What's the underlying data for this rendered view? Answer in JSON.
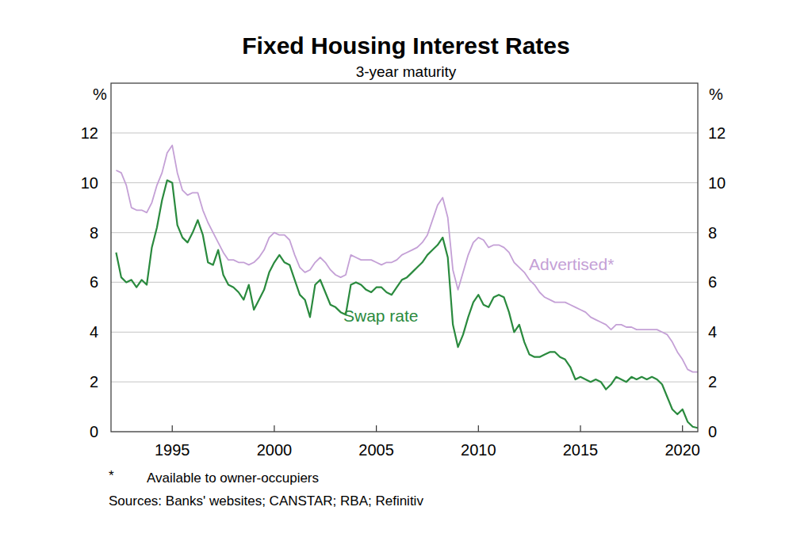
{
  "chart_data": {
    "type": "line",
    "title": "Fixed Housing Interest Rates",
    "subtitle": "3-year maturity",
    "y_label": "%",
    "footnote_marker": "*",
    "footnote": "Available to owner-occupiers",
    "source": "Sources: Banks' websites; CANSTAR; RBA; Refinitiv",
    "x": [
      1992.25,
      1992.5,
      1992.75,
      1993,
      1993.25,
      1993.5,
      1993.75,
      1994,
      1994.25,
      1994.5,
      1994.75,
      1995,
      1995.25,
      1995.5,
      1995.75,
      1996,
      1996.25,
      1996.5,
      1996.75,
      1997,
      1997.25,
      1997.5,
      1997.75,
      1998,
      1998.25,
      1998.5,
      1998.75,
      1999,
      1999.25,
      1999.5,
      1999.75,
      2000,
      2000.25,
      2000.5,
      2000.75,
      2001,
      2001.25,
      2001.5,
      2001.75,
      2002,
      2002.25,
      2002.5,
      2002.75,
      2003,
      2003.25,
      2003.5,
      2003.75,
      2004,
      2004.25,
      2004.5,
      2004.75,
      2005,
      2005.25,
      2005.5,
      2005.75,
      2006,
      2006.25,
      2006.5,
      2006.75,
      2007,
      2007.25,
      2007.5,
      2007.75,
      2008,
      2008.25,
      2008.5,
      2008.75,
      2009,
      2009.25,
      2009.5,
      2009.75,
      2010,
      2010.25,
      2010.5,
      2010.75,
      2011,
      2011.25,
      2011.5,
      2011.75,
      2012,
      2012.25,
      2012.5,
      2012.75,
      2013,
      2013.25,
      2013.5,
      2013.75,
      2014,
      2014.25,
      2014.5,
      2014.75,
      2015,
      2015.25,
      2015.5,
      2015.75,
      2016,
      2016.25,
      2016.5,
      2016.75,
      2017,
      2017.25,
      2017.5,
      2017.75,
      2018,
      2018.25,
      2018.5,
      2018.75,
      2019,
      2019.25,
      2019.5,
      2019.75,
      2020,
      2020.25,
      2020.5,
      2020.75
    ],
    "series": [
      {
        "name": "Advertised*",
        "color": "#c4a0d6",
        "values": [
          10.5,
          10.4,
          9.9,
          9.0,
          8.9,
          8.9,
          8.8,
          9.2,
          9.9,
          10.4,
          11.2,
          11.5,
          10.4,
          9.7,
          9.5,
          9.6,
          9.6,
          8.9,
          8.4,
          8.0,
          7.6,
          7.2,
          6.9,
          6.9,
          6.8,
          6.8,
          6.7,
          6.8,
          7.0,
          7.3,
          7.8,
          8.0,
          7.9,
          7.9,
          7.7,
          7.1,
          6.6,
          6.4,
          6.5,
          6.8,
          7.0,
          6.8,
          6.5,
          6.3,
          6.2,
          6.3,
          7.1,
          7.0,
          6.9,
          6.9,
          6.9,
          6.8,
          6.7,
          6.8,
          6.8,
          6.9,
          7.1,
          7.2,
          7.3,
          7.4,
          7.6,
          7.9,
          8.5,
          9.1,
          9.4,
          8.6,
          6.5,
          5.7,
          6.4,
          7.1,
          7.6,
          7.8,
          7.7,
          7.4,
          7.5,
          7.5,
          7.4,
          7.2,
          6.8,
          6.6,
          6.4,
          6.1,
          5.9,
          5.6,
          5.4,
          5.3,
          5.2,
          5.2,
          5.2,
          5.1,
          5.0,
          4.9,
          4.8,
          4.6,
          4.5,
          4.4,
          4.3,
          4.1,
          4.3,
          4.3,
          4.2,
          4.2,
          4.1,
          4.1,
          4.1,
          4.1,
          4.1,
          4.0,
          3.9,
          3.6,
          3.2,
          2.9,
          2.5,
          2.4,
          2.4
        ]
      },
      {
        "name": "Swap rate",
        "color": "#2a8a3e",
        "values": [
          7.2,
          6.2,
          6.0,
          6.1,
          5.8,
          6.1,
          5.9,
          7.4,
          8.2,
          9.3,
          10.1,
          10.0,
          8.3,
          7.8,
          7.6,
          8.0,
          8.5,
          7.9,
          6.8,
          6.7,
          7.3,
          6.3,
          5.9,
          5.8,
          5.6,
          5.3,
          5.9,
          4.9,
          5.3,
          5.7,
          6.4,
          6.8,
          7.1,
          6.8,
          6.7,
          6.1,
          5.5,
          5.3,
          4.6,
          5.9,
          6.1,
          5.6,
          5.1,
          5.0,
          4.8,
          4.7,
          5.9,
          6.0,
          5.9,
          5.7,
          5.6,
          5.8,
          5.8,
          5.6,
          5.5,
          5.8,
          6.1,
          6.2,
          6.4,
          6.6,
          6.8,
          7.1,
          7.3,
          7.5,
          7.8,
          7.0,
          4.3,
          3.4,
          3.9,
          4.6,
          5.2,
          5.5,
          5.1,
          5.0,
          5.4,
          5.5,
          5.4,
          4.8,
          4.0,
          4.3,
          3.6,
          3.1,
          3.0,
          3.0,
          3.1,
          3.2,
          3.2,
          3.0,
          2.9,
          2.6,
          2.1,
          2.2,
          2.1,
          2.0,
          2.1,
          2.0,
          1.7,
          1.9,
          2.2,
          2.1,
          2.0,
          2.2,
          2.1,
          2.2,
          2.1,
          2.2,
          2.1,
          1.9,
          1.4,
          0.9,
          0.7,
          0.9,
          0.4,
          0.2,
          0.15
        ]
      }
    ],
    "xlim": [
      1992,
      2020.75
    ],
    "xticks": [
      1995,
      2000,
      2005,
      2010,
      2015,
      2020
    ],
    "ylim": [
      0,
      14
    ],
    "yticks": [
      0,
      2,
      4,
      6,
      8,
      10,
      12
    ],
    "grid": true
  }
}
